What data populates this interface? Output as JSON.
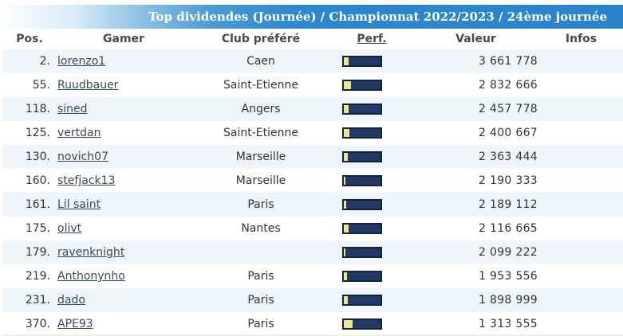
{
  "banner": {
    "title": "Top dividendes (Journée) / Championnat 2022/2023 / 24ème journée"
  },
  "columns": {
    "pos": "Pos.",
    "gamer": "Gamer",
    "club": "Club préféré",
    "perf": "Perf.",
    "valeur": "Valeur",
    "infos": "Infos"
  },
  "colors": {
    "banner": "#2a84cd",
    "row_alt": "#eef5fb",
    "bar_bg": "#1f3a66",
    "bar_fill": "#ece98a"
  },
  "rows": [
    {
      "pos": "2.",
      "gamer": "lorenzo1",
      "club": "Caen",
      "perf": 0.14,
      "valeur": "3 661 778",
      "infos": ""
    },
    {
      "pos": "55.",
      "gamer": "Ruudbauer",
      "club": "Saint-Etienne",
      "perf": 0.2,
      "valeur": "2 832 666",
      "infos": ""
    },
    {
      "pos": "118.",
      "gamer": "sined",
      "club": "Angers",
      "perf": 0.14,
      "valeur": "2 457 778",
      "infos": ""
    },
    {
      "pos": "125.",
      "gamer": "vertdan",
      "club": "Saint-Etienne",
      "perf": 0.16,
      "valeur": "2 400 667",
      "infos": ""
    },
    {
      "pos": "130.",
      "gamer": "novich07",
      "club": "Marseille",
      "perf": 0.1,
      "valeur": "2 363 444",
      "infos": ""
    },
    {
      "pos": "160.",
      "gamer": "stefjack13",
      "club": "Marseille",
      "perf": 0.04,
      "valeur": "2 190 333",
      "infos": ""
    },
    {
      "pos": "161.",
      "gamer": "Lil saint",
      "club": "Paris",
      "perf": 0.06,
      "valeur": "2 189 112",
      "infos": ""
    },
    {
      "pos": "175.",
      "gamer": "olivt",
      "club": "Nantes",
      "perf": 0.12,
      "valeur": "2 116 665",
      "infos": ""
    },
    {
      "pos": "179.",
      "gamer": "ravenknight",
      "club": "",
      "perf": 0.04,
      "valeur": "2 099 222",
      "infos": ""
    },
    {
      "pos": "219.",
      "gamer": "Anthonynho",
      "club": "Paris",
      "perf": 0.08,
      "valeur": "1 953 556",
      "infos": ""
    },
    {
      "pos": "231.",
      "gamer": "dado",
      "club": "Paris",
      "perf": 0.1,
      "valeur": "1 898 999",
      "infos": ""
    },
    {
      "pos": "370.",
      "gamer": "APE93",
      "club": "Paris",
      "perf": 0.24,
      "valeur": "1 313 555",
      "infos": ""
    }
  ]
}
